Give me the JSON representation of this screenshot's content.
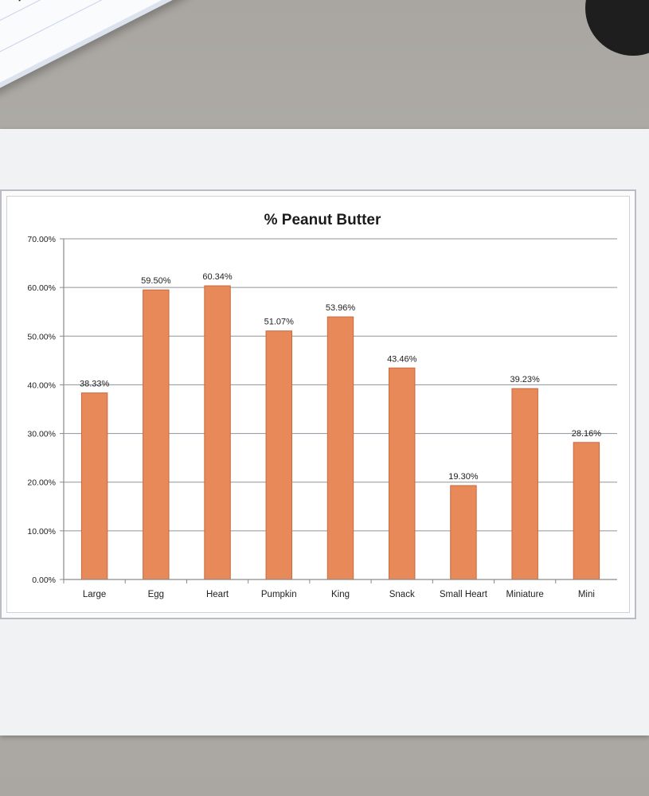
{
  "chart_data": {
    "type": "bar",
    "title": "% Peanut Butter",
    "categories": [
      "Large",
      "Egg",
      "Heart",
      "Pumpkin",
      "King",
      "Snack",
      "Small Heart",
      "Miniature",
      "Mini"
    ],
    "values": [
      38.33,
      59.5,
      60.34,
      51.07,
      53.96,
      43.46,
      19.3,
      39.23,
      28.16
    ],
    "data_labels": [
      "38.33%",
      "59.50%",
      "60.34%",
      "51.07%",
      "53.96%",
      "43.46%",
      "19.30%",
      "39.23%",
      "28.16%"
    ],
    "ylim": [
      0,
      70
    ],
    "yticks": [
      0,
      10,
      20,
      30,
      40,
      50,
      60,
      70
    ],
    "ytick_labels": [
      "0.00%",
      "10.00%",
      "20.00%",
      "30.00%",
      "40.00%",
      "50.00%",
      "60.00%",
      "70.00%"
    ],
    "grid": true,
    "legend": "none",
    "bar_color": "#e8895a",
    "bar_edge_color": "#c9693d"
  }
}
